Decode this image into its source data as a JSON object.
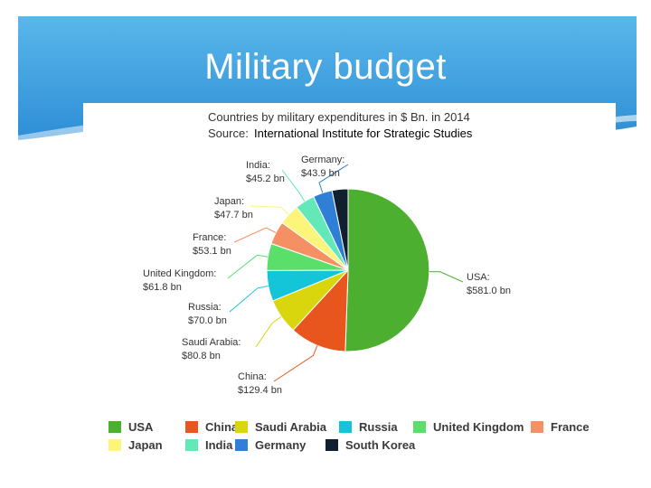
{
  "slide": {
    "title": "Military budget",
    "bg_light": "#5ab7ea",
    "bg_dark": "#2d8ed6"
  },
  "chart_data": {
    "type": "pie",
    "title": "Countries by military expenditures in $ Bn. in 2014",
    "source_prefix": "Source:",
    "source": "International Institute for Strategic Studies",
    "unit": "bn",
    "slices": [
      {
        "name": "USA",
        "value": 581.0,
        "label_name": "USA:",
        "label_value": "$581.0 bn",
        "color": "#4daf2f"
      },
      {
        "name": "China",
        "value": 129.4,
        "label_name": "China:",
        "label_value": "$129.4 bn",
        "color": "#e8561d"
      },
      {
        "name": "Saudi Arabia",
        "value": 80.8,
        "label_name": "Saudi Arabia:",
        "label_value": "$80.8 bn",
        "color": "#d9d60e"
      },
      {
        "name": "Russia",
        "value": 70.0,
        "label_name": "Russia:",
        "label_value": "$70.0 bn",
        "color": "#14c4d8"
      },
      {
        "name": "United Kingdom",
        "value": 61.8,
        "label_name": "United Kingdom:",
        "label_value": "$61.8 bn",
        "color": "#5ae06a"
      },
      {
        "name": "France",
        "value": 53.1,
        "label_name": "France:",
        "label_value": "$53.1 bn",
        "color": "#f58f64"
      },
      {
        "name": "Japan",
        "value": 47.7,
        "label_name": "Japan:",
        "label_value": "$47.7 bn",
        "color": "#fcf57a"
      },
      {
        "name": "India",
        "value": 45.2,
        "label_name": "India:",
        "label_value": "$45.2 bn",
        "color": "#63e8b8"
      },
      {
        "name": "Germany",
        "value": 43.9,
        "label_name": "Germany:",
        "label_value": "$43.9 bn",
        "color": "#2f7fd6"
      },
      {
        "name": "South Korea",
        "value": 36.4,
        "label_name": "",
        "label_value": "",
        "color": "#10202e"
      }
    ],
    "legend": [
      "USA",
      "China",
      "Saudi Arabia",
      "Russia",
      "United Kingdom",
      "France",
      "Japan",
      "India",
      "Germany",
      "South Korea"
    ]
  }
}
